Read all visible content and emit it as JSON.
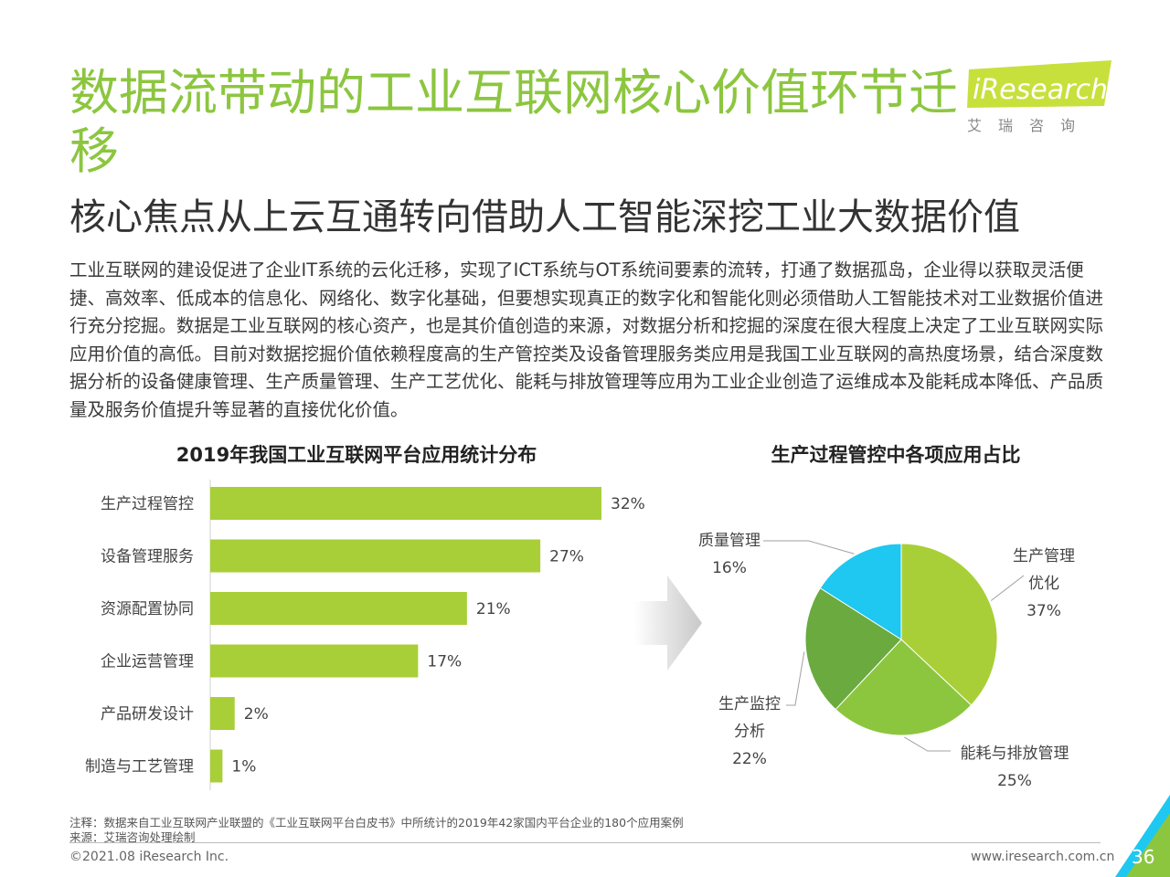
{
  "header": {
    "title": "数据流带动的工业互联网核心价值环节迁移",
    "subtitle": "核心焦点从上云互通转向借助人工智能深挖工业大数据价值",
    "body": "工业互联网的建设促进了企业IT系统的云化迁移，实现了ICT系统与OT系统间要素的流转，打通了数据孤岛，企业得以获取灵活便捷、高效率、低成本的信息化、网络化、数字化基础，但要想实现真正的数字化和智能化则必须借助人工智能技术对工业数据价值进行充分挖掘。数据是工业互联网的核心资产，也是其价值创造的来源，对数据分析和挖掘的深度在很大程度上决定了工业互联网实际应用价值的高低。目前对数据挖掘价值依赖程度高的生产管控类及设备管理服务类应用是我国工业互联网的高热度场景，结合深度数据分析的设备健康管理、生产质量管理、生产工艺优化、能耗与排放管理等应用为工业企业创造了运维成本及能耗成本降低、产品质量及服务价值提升等显著的直接优化价值。"
  },
  "logo": {
    "text": "iResearch",
    "sub": "艾瑞咨询",
    "color": "#8cc63f"
  },
  "chart_data": [
    {
      "type": "bar",
      "title": "2019年我国工业互联网平台应用统计分布",
      "orientation": "horizontal",
      "categories": [
        "生产过程管控",
        "设备管理服务",
        "资源配置协同",
        "企业运营管理",
        "产品研发设计",
        "制造与工艺管理"
      ],
      "values": [
        32,
        27,
        21,
        17,
        2,
        1
      ],
      "labels": [
        "32%",
        "27%",
        "21%",
        "17%",
        "2%",
        "1%"
      ],
      "color": "#a8cf38",
      "xlim": [
        0,
        32
      ],
      "grid": false
    },
    {
      "type": "pie",
      "title": "生产过程管控中各项应用占比",
      "slices": [
        {
          "name": "生产管理优化",
          "label_lines": [
            "生产管理",
            "优化"
          ],
          "value": 37,
          "label": "37%",
          "color": "#a8cf38"
        },
        {
          "name": "能耗与排放管理",
          "label_lines": [
            "能耗与排放管理"
          ],
          "value": 25,
          "label": "25%",
          "color": "#8cc63f"
        },
        {
          "name": "生产监控分析",
          "label_lines": [
            "生产监控",
            "分析"
          ],
          "value": 22,
          "label": "22%",
          "color": "#6aaa3f"
        },
        {
          "name": "质量管理",
          "label_lines": [
            "质量管理"
          ],
          "value": 16,
          "label": "16%",
          "color": "#1ec8f0"
        }
      ]
    }
  ],
  "footer": {
    "note": "注释：数据来自工业互联网产业联盟的《工业互联网平台白皮书》中所统计的2019年42家国内平台企业的180个应用案例",
    "source": "来源：艾瑞咨询处理绘制",
    "copyright": "©2021.08 iResearch Inc.",
    "website": "www.iresearch.com.cn",
    "page": "36"
  }
}
